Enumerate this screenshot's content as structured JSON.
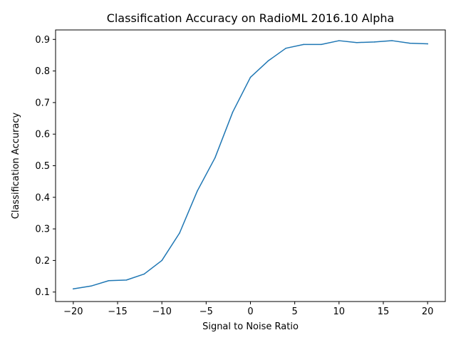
{
  "chart_data": {
    "type": "line",
    "title": "Classification Accuracy on RadioML 2016.10 Alpha",
    "xlabel": "Signal to Noise Ratio",
    "ylabel": "Classification Accuracy",
    "xlim": [
      -22,
      22
    ],
    "ylim": [
      0.07,
      0.93
    ],
    "xticks": [
      -20,
      -15,
      -10,
      -5,
      0,
      5,
      10,
      15,
      20
    ],
    "xtick_labels": [
      "−20",
      "−15",
      "−10",
      "−5",
      "0",
      "5",
      "10",
      "15",
      "20"
    ],
    "yticks": [
      0.1,
      0.2,
      0.3,
      0.4,
      0.5,
      0.6,
      0.7,
      0.8,
      0.9
    ],
    "ytick_labels": [
      "0.1",
      "0.2",
      "0.3",
      "0.4",
      "0.5",
      "0.6",
      "0.7",
      "0.8",
      "0.9"
    ],
    "grid": false,
    "series": [
      {
        "color": "#1f77b4",
        "x": [
          -20,
          -18,
          -16,
          -14,
          -12,
          -10,
          -8,
          -6,
          -4,
          -2,
          0,
          2,
          4,
          6,
          8,
          10,
          12,
          14,
          16,
          18,
          20
        ],
        "y": [
          0.11,
          0.119,
          0.136,
          0.138,
          0.157,
          0.2,
          0.287,
          0.42,
          0.525,
          0.67,
          0.78,
          0.832,
          0.872,
          0.884,
          0.884,
          0.896,
          0.89,
          0.892,
          0.896,
          0.888,
          0.886
        ]
      }
    ]
  }
}
